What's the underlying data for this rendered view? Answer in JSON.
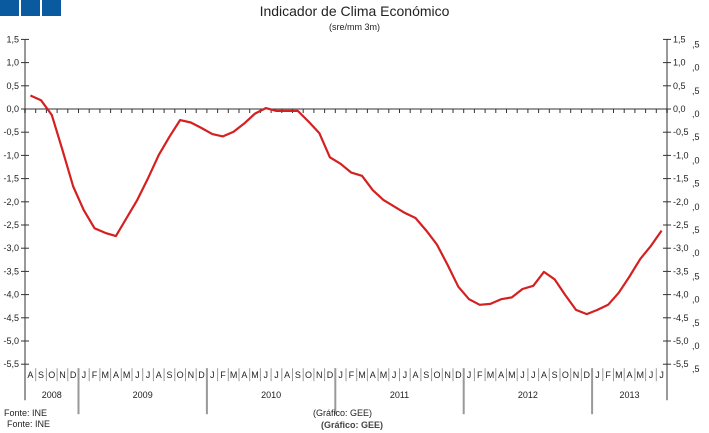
{
  "header": {
    "title": "Indicador de Clima Económico",
    "subtitle": "(sre/mm 3m)"
  },
  "footer": {
    "source_1": "Fonte: INE",
    "source_2": "Fonte: INE",
    "credit_1": "(Gráfico: GEE)",
    "credit_2": "(Gráfico: GEE)"
  },
  "colors": {
    "line": "#d42020",
    "axis": "#999999",
    "logo": "#0a5aa0"
  },
  "chart_data": {
    "type": "line",
    "title": "Indicador de Clima Económico",
    "subtitle": "(sre/mm 3m)",
    "xlabel": "",
    "ylabel": "",
    "ylim": [
      -5.5,
      1.5
    ],
    "yticks": [
      "1,5",
      "1,0",
      "0,5",
      "0,0",
      "-0,5",
      "-1,0",
      "-1,5",
      "-2,0",
      "-2,5",
      "-3,0",
      "-3,5",
      "-4,0",
      "-4,5",
      "-5,0",
      "-5,5"
    ],
    "grid": false,
    "legend": null,
    "years": [
      {
        "label": "2008",
        "months": 5
      },
      {
        "label": "2009",
        "months": 12
      },
      {
        "label": "2010",
        "months": 12
      },
      {
        "label": "2011",
        "months": 12
      },
      {
        "label": "2012",
        "months": 12
      },
      {
        "label": "2013",
        "months": 7
      }
    ],
    "categories": [
      "A",
      "S",
      "O",
      "N",
      "D",
      "J",
      "F",
      "M",
      "A",
      "M",
      "J",
      "J",
      "A",
      "S",
      "O",
      "N",
      "D",
      "J",
      "F",
      "M",
      "A",
      "M",
      "J",
      "J",
      "A",
      "S",
      "O",
      "N",
      "D",
      "J",
      "F",
      "M",
      "A",
      "M",
      "J",
      "J",
      "A",
      "S",
      "O",
      "N",
      "D",
      "J",
      "F",
      "M",
      "A",
      "M",
      "J",
      "J",
      "A",
      "S",
      "O",
      "N",
      "D",
      "J",
      "F",
      "M",
      "A",
      "M",
      "J",
      "J"
    ],
    "series": [
      {
        "name": "Indicador de Clima Económico",
        "values": [
          0.29,
          0.19,
          -0.13,
          -0.88,
          -1.67,
          -2.18,
          -2.57,
          -2.67,
          -2.74,
          -2.35,
          -1.96,
          -1.49,
          -0.99,
          -0.6,
          -0.24,
          -0.29,
          -0.41,
          -0.54,
          -0.59,
          -0.49,
          -0.31,
          -0.1,
          0.02,
          -0.04,
          -0.04,
          -0.04,
          -0.27,
          -0.52,
          -1.04,
          -1.18,
          -1.37,
          -1.44,
          -1.75,
          -1.96,
          -2.1,
          -2.24,
          -2.35,
          -2.62,
          -2.92,
          -3.36,
          -3.83,
          -4.1,
          -4.22,
          -4.2,
          -4.1,
          -4.06,
          -3.88,
          -3.81,
          -3.51,
          -3.67,
          -4.01,
          -4.33,
          -4.42,
          -4.33,
          -4.22,
          -3.96,
          -3.61,
          -3.23,
          -2.95,
          -2.62
        ]
      }
    ]
  }
}
